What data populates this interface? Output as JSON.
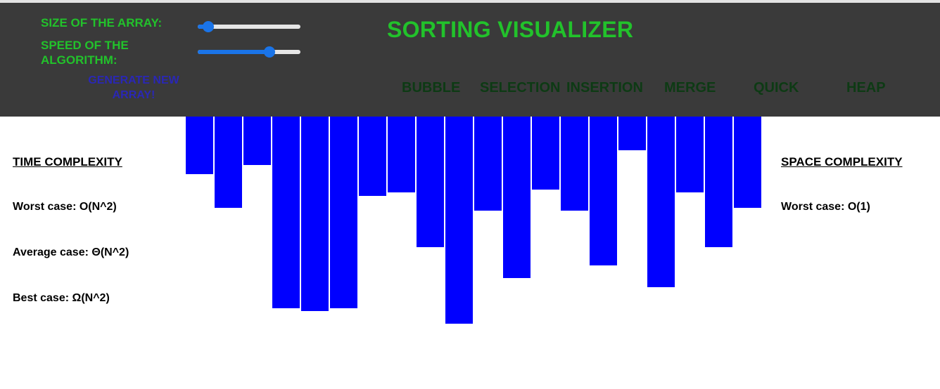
{
  "controls": {
    "size_label": "SIZE OF THE ARRAY:",
    "speed_label": "SPEED OF THE ALGORITHM:",
    "size_value": 0.05,
    "speed_value": 0.72,
    "generate_label": "GENERATE NEW ARRAY!"
  },
  "title": "SORTING VISUALIZER",
  "algorithms": [
    "BUBBLE",
    "SELECTION",
    "INSERTION",
    "MERGE",
    "QUICK",
    "HEAP"
  ],
  "time_complexity": {
    "heading": "TIME COMPLEXITY",
    "worst": "Worst case: O(N^2)",
    "average": "Average case: Θ(N^2)",
    "best": "Best case: Ω(N^2)"
  },
  "space_complexity": {
    "heading": "SPACE COMPLEXITY",
    "worst": "Worst case: O(1)"
  },
  "array_values": [
    82,
    130,
    69,
    273,
    277,
    273,
    113,
    108,
    186,
    295,
    134,
    230,
    104,
    134,
    212,
    48,
    243,
    108,
    186,
    130
  ],
  "colors": {
    "bar": "#0000ff",
    "accent": "#22c22b",
    "navbar": "#3a3a3a"
  }
}
